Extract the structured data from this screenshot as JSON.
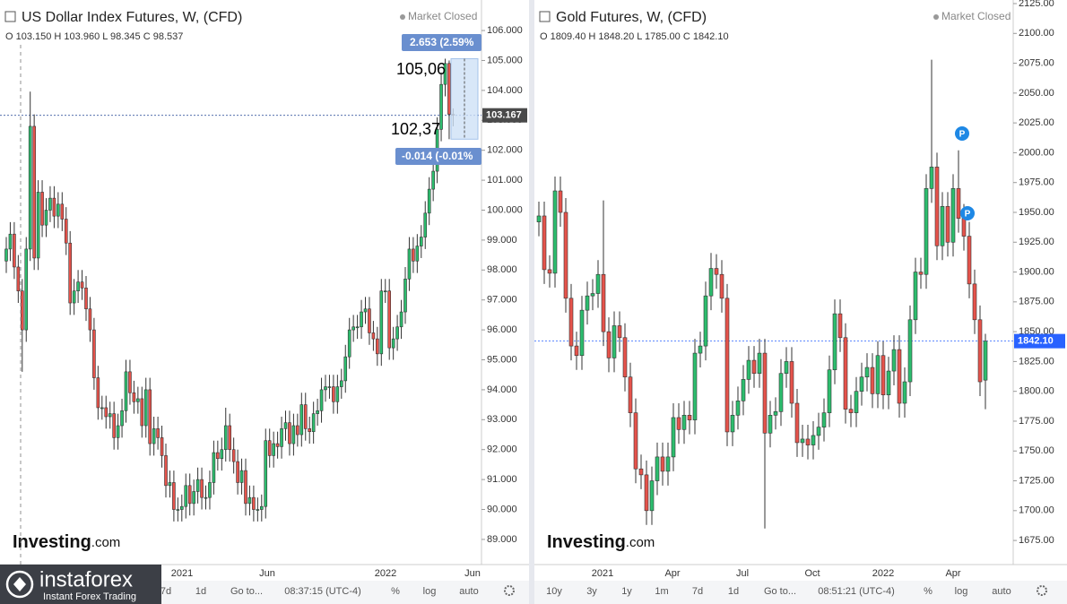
{
  "chart_data": [
    {
      "type": "candlestick",
      "title": "US Dollar Index Futures, W, (CFD)",
      "status": "Market Closed",
      "ohlc_text": "O 103.150  H 103.960  L 98.345  C 98.537",
      "up_color": "#2dbd6e",
      "down_color": "#e5534b",
      "open": [
        98.3,
        98.7,
        99.2,
        98.1,
        97.3,
        96.0,
        98.7,
        102.8,
        98.4,
        100.6,
        99.5,
        100.0,
        100.4,
        99.8,
        100.2,
        99.7,
        98.9,
        96.9,
        97.3,
        97.6,
        97.4,
        96.7,
        96.0,
        94.4,
        93.4,
        93.4,
        93.1,
        93.2,
        92.4,
        92.8,
        93.3,
        94.6,
        93.9,
        93.6,
        93.7,
        92.8,
        94.0,
        92.2,
        92.7,
        92.4,
        91.8,
        90.8,
        90.9,
        90.0,
        90.0,
        90.1,
        90.8,
        90.2,
        90.6,
        91.0,
        90.4,
        90.4,
        90.9,
        91.9,
        91.7,
        92.0,
        92.8,
        92.0,
        91.6,
        90.9,
        91.3,
        90.2,
        90.4,
        90.0,
        90.0,
        90.1,
        92.3,
        91.8,
        92.2,
        92.1,
        92.7,
        92.9,
        92.2,
        92.8,
        92.5,
        93.5,
        92.7,
        92.6,
        93.2,
        93.3,
        94.0,
        94.1,
        94.1,
        93.6,
        94.1,
        94.3,
        95.1,
        96.0,
        96.1,
        96.1,
        96.6,
        96.7,
        95.9,
        95.7,
        95.2,
        97.3,
        97.3,
        95.4,
        95.7,
        96.1,
        96.6,
        97.7,
        98.7,
        98.3,
        98.8,
        99.1,
        99.9,
        100.7,
        101.3,
        102.7,
        104.2,
        104.9,
        103.2
      ],
      "high": [
        99.1,
        99.6,
        99.6,
        98.5,
        97.7,
        99.1,
        103.96,
        103.2,
        101.0,
        101.0,
        100.4,
        100.8,
        100.8,
        100.6,
        100.6,
        100.1,
        99.3,
        97.7,
        98.0,
        98.0,
        97.8,
        97.1,
        96.4,
        94.8,
        93.8,
        93.8,
        93.6,
        93.6,
        93.2,
        93.7,
        95.0,
        95.0,
        94.3,
        94.1,
        94.1,
        94.4,
        94.4,
        93.1,
        93.1,
        92.8,
        92.2,
        91.3,
        91.3,
        90.4,
        90.5,
        91.2,
        91.2,
        91.0,
        91.4,
        91.4,
        90.8,
        91.3,
        92.3,
        92.3,
        92.4,
        93.4,
        93.2,
        92.4,
        92.0,
        91.7,
        91.7,
        90.8,
        90.8,
        90.4,
        90.5,
        92.7,
        92.7,
        92.6,
        92.6,
        93.1,
        93.3,
        93.3,
        93.2,
        93.2,
        93.9,
        93.9,
        93.1,
        93.6,
        93.7,
        94.4,
        94.5,
        94.5,
        94.5,
        94.5,
        94.7,
        95.5,
        96.4,
        96.5,
        96.5,
        97.0,
        97.1,
        97.1,
        96.3,
        96.1,
        97.7,
        97.7,
        97.7,
        96.1,
        96.5,
        97.0,
        98.1,
        99.1,
        99.1,
        99.2,
        99.5,
        100.3,
        101.1,
        101.7,
        103.1,
        104.6,
        105.06,
        105.0,
        103.4
      ],
      "low": [
        97.9,
        98.3,
        97.7,
        96.9,
        94.6,
        95.6,
        98.3,
        98.0,
        98.0,
        99.1,
        99.1,
        99.6,
        99.4,
        99.4,
        99.3,
        98.5,
        96.5,
        96.5,
        96.9,
        97.0,
        96.3,
        95.6,
        94.0,
        93.0,
        93.0,
        92.7,
        92.7,
        92.0,
        92.0,
        92.4,
        92.9,
        93.5,
        93.2,
        93.2,
        92.4,
        92.4,
        91.8,
        91.8,
        92.0,
        91.4,
        90.4,
        90.4,
        89.6,
        89.6,
        89.6,
        89.7,
        89.8,
        89.8,
        90.2,
        90.0,
        90.0,
        90.0,
        90.5,
        91.3,
        91.3,
        91.6,
        91.6,
        91.2,
        90.5,
        90.5,
        89.8,
        89.8,
        89.6,
        89.6,
        89.6,
        89.7,
        91.4,
        91.4,
        91.7,
        91.7,
        92.3,
        91.8,
        91.8,
        92.1,
        92.1,
        92.3,
        92.2,
        92.2,
        92.8,
        92.9,
        93.6,
        93.7,
        93.2,
        93.2,
        93.7,
        93.9,
        94.7,
        95.6,
        95.7,
        95.7,
        96.2,
        95.5,
        95.3,
        94.8,
        94.8,
        96.9,
        95.0,
        95.0,
        95.3,
        95.7,
        96.2,
        97.3,
        97.9,
        97.9,
        98.4,
        98.7,
        99.5,
        100.3,
        100.9,
        102.3,
        103.8,
        102.37,
        102.8
      ],
      "close": [
        98.7,
        99.2,
        98.1,
        97.3,
        96.0,
        98.7,
        102.8,
        98.4,
        100.6,
        99.5,
        100.0,
        100.4,
        99.8,
        100.2,
        99.7,
        98.9,
        96.9,
        97.3,
        97.6,
        97.4,
        96.7,
        96.0,
        94.4,
        93.4,
        93.4,
        93.1,
        93.2,
        92.4,
        92.8,
        93.3,
        94.6,
        93.9,
        93.6,
        93.7,
        92.8,
        94.0,
        92.2,
        92.7,
        92.4,
        91.8,
        90.8,
        90.9,
        90.0,
        90.0,
        90.1,
        90.8,
        90.2,
        90.6,
        91.0,
        90.4,
        90.4,
        90.9,
        91.9,
        91.7,
        92.0,
        92.8,
        92.0,
        91.6,
        90.9,
        91.3,
        90.2,
        90.4,
        90.0,
        90.0,
        90.1,
        92.3,
        91.8,
        92.2,
        92.1,
        92.7,
        92.9,
        92.2,
        92.8,
        92.5,
        93.5,
        92.7,
        92.6,
        93.2,
        93.3,
        94.0,
        94.1,
        94.1,
        93.6,
        94.1,
        94.3,
        95.1,
        96.0,
        96.1,
        96.1,
        96.6,
        96.7,
        95.9,
        95.7,
        95.2,
        97.3,
        97.3,
        95.4,
        95.7,
        96.1,
        96.6,
        97.7,
        98.7,
        98.3,
        98.8,
        99.1,
        99.9,
        100.7,
        101.3,
        102.7,
        104.2,
        104.9,
        103.2,
        103.17
      ],
      "ylim": [
        88.16,
        106.9
      ],
      "yticks": [
        {
          "value": 89,
          "label": "89.000"
        },
        {
          "value": 90,
          "label": "90.000"
        },
        {
          "value": 91,
          "label": "91.000"
        },
        {
          "value": 92,
          "label": "92.000"
        },
        {
          "value": 93,
          "label": "93.000"
        },
        {
          "value": 94,
          "label": "94.000"
        },
        {
          "value": 95,
          "label": "95.000"
        },
        {
          "value": 96,
          "label": "96.000"
        },
        {
          "value": 97,
          "label": "97.000"
        },
        {
          "value": 98,
          "label": "98.000"
        },
        {
          "value": 99,
          "label": "99.000"
        },
        {
          "value": 100,
          "label": "100.000"
        },
        {
          "value": 101,
          "label": "101.000"
        },
        {
          "value": 102,
          "label": "102.000"
        },
        {
          "value": 103,
          "label": "103.000"
        },
        {
          "value": 104,
          "label": "104.000"
        },
        {
          "value": 105,
          "label": "105.000"
        },
        {
          "value": 106,
          "label": "106.000"
        }
      ],
      "x_labels": [
        "2021",
        "Jun",
        "2022",
        "Jun"
      ],
      "last_price": 103.167,
      "measure": {
        "top": 105.06,
        "bottom": 102.37,
        "top_text": "105,06",
        "bottom_text": "102,37",
        "up_label": "2.653 (2.59%",
        "down_label": "-0.014 (-0.01%"
      },
      "logo": [
        "Investing",
        ".com"
      ],
      "toolbar": [
        "7d",
        "1d",
        "Go to...",
        "08:37:15 (UTC-4)",
        "%",
        "log",
        "auto"
      ]
    },
    {
      "type": "candlestick",
      "title": "Gold Futures, W, (CFD)",
      "status": "Market Closed",
      "ohlc_text": "O 1809.40  H 1848.20  L 1785.00  C 1842.10",
      "up_color": "#2dbd6e",
      "down_color": "#e5534b",
      "open": [
        1942,
        1947,
        1902,
        1899,
        1968,
        1950,
        1878,
        1838,
        1830,
        1868,
        1880,
        1882,
        1898,
        1850,
        1828,
        1855,
        1845,
        1812,
        1782,
        1735,
        1730,
        1700,
        1725,
        1745,
        1733,
        1745,
        1778,
        1768,
        1780,
        1776,
        1832,
        1838,
        1880,
        1903,
        1898,
        1878,
        1766,
        1780,
        1792,
        1810,
        1826,
        1815,
        1832,
        1765,
        1780,
        1783,
        1815,
        1825,
        1790,
        1757,
        1760,
        1755,
        1763,
        1770,
        1782,
        1818,
        1865,
        1845,
        1785,
        1782,
        1800,
        1812,
        1820,
        1798,
        1830,
        1797,
        1817,
        1835,
        1790,
        1808,
        1860,
        1900,
        1898,
        1970,
        1988,
        1922,
        1955,
        1925,
        1970,
        1945,
        1930,
        1890,
        1860,
        1809.4
      ],
      "high": [
        1959,
        1959,
        1914,
        1980,
        1980,
        1962,
        1890,
        1850,
        1880,
        1892,
        1894,
        1910,
        1960,
        1862,
        1867,
        1867,
        1857,
        1824,
        1794,
        1747,
        1742,
        1737,
        1757,
        1757,
        1757,
        1790,
        1790,
        1792,
        1792,
        1844,
        1850,
        1892,
        1916,
        1915,
        1910,
        1890,
        1792,
        1804,
        1822,
        1838,
        1838,
        1844,
        1844,
        1792,
        1795,
        1827,
        1837,
        1837,
        1802,
        1772,
        1772,
        1775,
        1782,
        1794,
        1830,
        1877,
        1877,
        1857,
        1797,
        1812,
        1824,
        1832,
        1832,
        1842,
        1842,
        1829,
        1847,
        1847,
        1820,
        1872,
        1912,
        1912,
        1982,
        2078,
        2000,
        1967,
        1967,
        1982,
        2002,
        1957,
        1942,
        1902,
        1872,
        1848.2
      ],
      "low": [
        1930,
        1890,
        1887,
        1887,
        1938,
        1866,
        1826,
        1818,
        1818,
        1856,
        1868,
        1870,
        1838,
        1816,
        1816,
        1833,
        1800,
        1770,
        1723,
        1718,
        1688,
        1688,
        1713,
        1721,
        1721,
        1733,
        1756,
        1756,
        1764,
        1764,
        1820,
        1826,
        1868,
        1886,
        1866,
        1754,
        1754,
        1768,
        1780,
        1798,
        1803,
        1803,
        1685,
        1753,
        1768,
        1771,
        1803,
        1778,
        1745,
        1745,
        1743,
        1743,
        1751,
        1758,
        1770,
        1806,
        1833,
        1773,
        1770,
        1770,
        1788,
        1800,
        1786,
        1786,
        1785,
        1785,
        1805,
        1778,
        1778,
        1796,
        1848,
        1886,
        1886,
        1958,
        1910,
        1910,
        1913,
        1913,
        1933,
        1918,
        1878,
        1848,
        1796,
        1785
      ],
      "close": [
        1947,
        1902,
        1899,
        1968,
        1950,
        1878,
        1838,
        1830,
        1868,
        1880,
        1882,
        1898,
        1850,
        1828,
        1855,
        1845,
        1812,
        1782,
        1735,
        1730,
        1700,
        1725,
        1745,
        1733,
        1745,
        1778,
        1768,
        1780,
        1776,
        1832,
        1838,
        1880,
        1903,
        1898,
        1878,
        1766,
        1780,
        1792,
        1810,
        1826,
        1815,
        1832,
        1765,
        1780,
        1783,
        1815,
        1825,
        1790,
        1757,
        1760,
        1755,
        1763,
        1770,
        1782,
        1818,
        1865,
        1845,
        1785,
        1782,
        1800,
        1812,
        1820,
        1798,
        1830,
        1797,
        1817,
        1835,
        1790,
        1808,
        1860,
        1900,
        1898,
        1970,
        1988,
        1922,
        1955,
        1925,
        1970,
        1945,
        1930,
        1890,
        1860,
        1808,
        1842.1
      ],
      "ylim": [
        1654.8,
        2125
      ],
      "yticks": [
        {
          "value": 1675,
          "label": "1675.00"
        },
        {
          "value": 1700,
          "label": "1700.00"
        },
        {
          "value": 1725,
          "label": "1725.00"
        },
        {
          "value": 1750,
          "label": "1750.00"
        },
        {
          "value": 1775,
          "label": "1775.00"
        },
        {
          "value": 1800,
          "label": "1800.00"
        },
        {
          "value": 1825,
          "label": "1825.00"
        },
        {
          "value": 1850,
          "label": "1850.00"
        },
        {
          "value": 1875,
          "label": "1875.00"
        },
        {
          "value": 1900,
          "label": "1900.00"
        },
        {
          "value": 1925,
          "label": "1925.00"
        },
        {
          "value": 1950,
          "label": "1950.00"
        },
        {
          "value": 1975,
          "label": "1975.00"
        },
        {
          "value": 2000,
          "label": "2000.00"
        },
        {
          "value": 2025,
          "label": "2025.00"
        },
        {
          "value": 2050,
          "label": "2050.00"
        },
        {
          "value": 2075,
          "label": "2075.00"
        },
        {
          "value": 2100,
          "label": "2100.00"
        },
        {
          "value": 2125,
          "label": "2125.00"
        }
      ],
      "x_labels": [
        "2021",
        "Apr",
        "Jul",
        "Oct",
        "2022",
        "Apr"
      ],
      "last_price": {
        "value": 1842.1,
        "label": "1842.10"
      },
      "markers": [
        "P",
        "P"
      ],
      "logo": [
        "Investing",
        ".com"
      ],
      "toolbar": [
        "10y",
        "3y",
        "1y",
        "1m",
        "7d",
        "1d",
        "Go to...",
        "08:51:21 (UTC-4)",
        "%",
        "log",
        "auto"
      ]
    }
  ],
  "overlay": {
    "brand": "instaforex",
    "tagline": "Instant Forex Trading"
  }
}
